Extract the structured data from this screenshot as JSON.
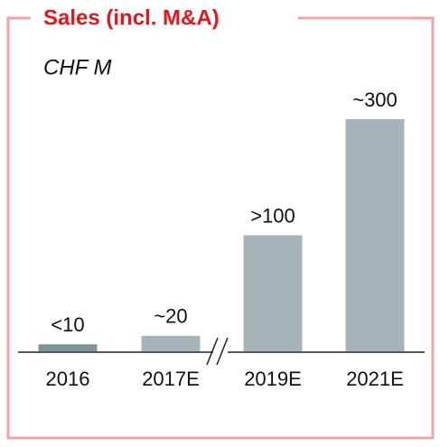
{
  "chart_data": {
    "type": "bar",
    "title": "Sales (incl. M&A)",
    "subtitle": "CHF M",
    "categories": [
      "2016",
      "2017E",
      "2019E",
      "2021E"
    ],
    "values": [
      9,
      20,
      150,
      300
    ],
    "value_labels": [
      "<10",
      "~20",
      ">100",
      "~300"
    ],
    "colors": [
      "#7b959b",
      "#a4b4b9",
      "#a4b4b9",
      "#a4b4b9"
    ]
  }
}
